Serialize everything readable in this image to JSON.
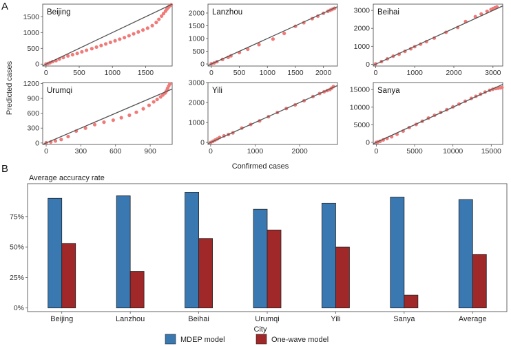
{
  "panel_a_letter": "A",
  "panel_b_letter": "B",
  "colors": {
    "point": "#f07a78",
    "fit_line": "#555555",
    "mdep": "#3a78b2",
    "onewave": "#a02828",
    "frame": "#555555"
  },
  "chart_data": [
    {
      "type": "scatter",
      "title": "Beijing",
      "xlim": [
        -50,
        1900
      ],
      "ylim": [
        -60,
        1900
      ],
      "xticks": [
        0,
        500,
        1000,
        1500
      ],
      "yticks": [
        0,
        500,
        1000,
        1500
      ],
      "xlabel": "Confirmed cases",
      "ylabel": "Predicted cases",
      "line": [
        [
          -50,
          -50
        ],
        [
          1900,
          1900
        ]
      ],
      "points": [
        [
          0,
          5
        ],
        [
          30,
          20
        ],
        [
          60,
          45
        ],
        [
          100,
          80
        ],
        [
          150,
          110
        ],
        [
          200,
          160
        ],
        [
          260,
          210
        ],
        [
          330,
          260
        ],
        [
          400,
          300
        ],
        [
          470,
          340
        ],
        [
          540,
          390
        ],
        [
          610,
          440
        ],
        [
          690,
          490
        ],
        [
          760,
          540
        ],
        [
          830,
          590
        ],
        [
          900,
          640
        ],
        [
          970,
          690
        ],
        [
          1040,
          740
        ],
        [
          1110,
          790
        ],
        [
          1180,
          840
        ],
        [
          1250,
          900
        ],
        [
          1320,
          960
        ],
        [
          1390,
          1020
        ],
        [
          1460,
          1080
        ],
        [
          1530,
          1140
        ],
        [
          1600,
          1220
        ],
        [
          1660,
          1320
        ],
        [
          1700,
          1420
        ],
        [
          1740,
          1520
        ],
        [
          1770,
          1600
        ],
        [
          1800,
          1680
        ],
        [
          1820,
          1740
        ],
        [
          1840,
          1790
        ],
        [
          1855,
          1830
        ],
        [
          1870,
          1860
        ],
        [
          1885,
          1880
        ]
      ]
    },
    {
      "type": "scatter",
      "title": "Lanzhou",
      "xlim": [
        -60,
        2250
      ],
      "ylim": [
        -80,
        2350
      ],
      "xticks": [
        0,
        500,
        1000,
        1500,
        2000
      ],
      "yticks": [
        0,
        500,
        1000,
        1500,
        2000
      ],
      "xlabel": "Confirmed cases",
      "ylabel": "Predicted cases",
      "line": [
        [
          -60,
          -60
        ],
        [
          2250,
          2250
        ]
      ],
      "points": [
        [
          0,
          10
        ],
        [
          50,
          40
        ],
        [
          100,
          90
        ],
        [
          200,
          180
        ],
        [
          300,
          260
        ],
        [
          350,
          320
        ],
        [
          500,
          450
        ],
        [
          650,
          580
        ],
        [
          850,
          760
        ],
        [
          1100,
          980
        ],
        [
          1300,
          1200
        ],
        [
          1500,
          1480
        ],
        [
          1650,
          1620
        ],
        [
          1800,
          1780
        ],
        [
          1900,
          1880
        ],
        [
          2000,
          1990
        ],
        [
          2080,
          2070
        ],
        [
          2120,
          2110
        ],
        [
          2150,
          2140
        ],
        [
          2180,
          2170
        ],
        [
          2200,
          2190
        ]
      ]
    },
    {
      "type": "scatter",
      "title": "Beihai",
      "xlim": [
        -60,
        3250
      ],
      "ylim": [
        -100,
        3350
      ],
      "xticks": [
        0,
        1000,
        2000,
        3000
      ],
      "yticks": [
        0,
        1000,
        2000,
        3000
      ],
      "xlabel": "Confirmed cases",
      "ylabel": "Predicted cases",
      "line": [
        [
          -60,
          -60
        ],
        [
          3250,
          3250
        ]
      ],
      "points": [
        [
          0,
          20
        ],
        [
          150,
          150
        ],
        [
          300,
          300
        ],
        [
          450,
          450
        ],
        [
          600,
          560
        ],
        [
          750,
          720
        ],
        [
          900,
          860
        ],
        [
          1000,
          980
        ],
        [
          1150,
          1120
        ],
        [
          1300,
          1260
        ],
        [
          1500,
          1460
        ],
        [
          1800,
          1780
        ],
        [
          2100,
          2050
        ],
        [
          2300,
          2380
        ],
        [
          2550,
          2650
        ],
        [
          2700,
          2800
        ],
        [
          2850,
          2950
        ],
        [
          2950,
          3050
        ],
        [
          3000,
          3100
        ],
        [
          3050,
          3150
        ],
        [
          3100,
          3200
        ]
      ]
    },
    {
      "type": "scatter",
      "title": "Urumqi",
      "xlim": [
        -30,
        1090
      ],
      "ylim": [
        -30,
        1220
      ],
      "xticks": [
        0,
        300,
        600,
        900
      ],
      "yticks": [
        0,
        300,
        600,
        900,
        1200
      ],
      "xlabel": "Confirmed cases",
      "ylabel": "Predicted cases",
      "line": [
        [
          -30,
          -30
        ],
        [
          1090,
          1090
        ]
      ],
      "points": [
        [
          0,
          5
        ],
        [
          40,
          20
        ],
        [
          80,
          40
        ],
        [
          130,
          70
        ],
        [
          190,
          130
        ],
        [
          260,
          240
        ],
        [
          340,
          300
        ],
        [
          420,
          370
        ],
        [
          500,
          420
        ],
        [
          580,
          460
        ],
        [
          650,
          510
        ],
        [
          720,
          560
        ],
        [
          780,
          620
        ],
        [
          840,
          690
        ],
        [
          890,
          760
        ],
        [
          930,
          830
        ],
        [
          960,
          880
        ],
        [
          990,
          930
        ],
        [
          1010,
          970
        ],
        [
          1030,
          1010
        ],
        [
          1040,
          1050
        ],
        [
          1050,
          1100
        ],
        [
          1060,
          1150
        ],
        [
          1070,
          1190
        ]
      ]
    },
    {
      "type": "scatter",
      "title": "Yili",
      "xlim": [
        -60,
        2850
      ],
      "ylim": [
        -100,
        3000
      ],
      "xticks": [
        0,
        1000,
        2000
      ],
      "yticks": [
        0,
        1000,
        2000,
        3000
      ],
      "xlabel": "Confirmed cases",
      "ylabel": "Predicted cases",
      "line": [
        [
          -60,
          -60
        ],
        [
          2850,
          2850
        ]
      ],
      "points": [
        [
          0,
          0
        ],
        [
          50,
          60
        ],
        [
          100,
          120
        ],
        [
          150,
          180
        ],
        [
          200,
          250
        ],
        [
          300,
          330
        ],
        [
          400,
          400
        ],
        [
          500,
          480
        ],
        [
          700,
          720
        ],
        [
          900,
          900
        ],
        [
          1100,
          1080
        ],
        [
          1300,
          1290
        ],
        [
          1500,
          1500
        ],
        [
          1700,
          1700
        ],
        [
          1900,
          1880
        ],
        [
          2100,
          2090
        ],
        [
          2300,
          2300
        ],
        [
          2450,
          2450
        ],
        [
          2550,
          2540
        ],
        [
          2620,
          2600
        ],
        [
          2680,
          2650
        ],
        [
          2720,
          2720
        ],
        [
          2760,
          2800
        ]
      ]
    },
    {
      "type": "scatter",
      "title": "Sanya",
      "xlim": [
        -400,
        16500
      ],
      "ylim": [
        -600,
        17000
      ],
      "xticks": [
        0,
        5000,
        10000,
        15000
      ],
      "yticks": [
        0,
        5000,
        10000,
        15000
      ],
      "xlabel": "Confirmed cases",
      "ylabel": "Predicted cases",
      "line": [
        [
          -400,
          -400
        ],
        [
          16500,
          16500
        ]
      ],
      "points": [
        [
          0,
          0
        ],
        [
          200,
          100
        ],
        [
          500,
          300
        ],
        [
          900,
          700
        ],
        [
          1400,
          1100
        ],
        [
          2000,
          1600
        ],
        [
          2700,
          2300
        ],
        [
          3500,
          3200
        ],
        [
          4300,
          4200
        ],
        [
          5200,
          5100
        ],
        [
          6000,
          6000
        ],
        [
          6800,
          6900
        ],
        [
          7600,
          7700
        ],
        [
          8400,
          8500
        ],
        [
          9200,
          9300
        ],
        [
          10000,
          10100
        ],
        [
          10800,
          10900
        ],
        [
          11600,
          11700
        ],
        [
          12400,
          12500
        ],
        [
          13000,
          13100
        ],
        [
          13600,
          13700
        ],
        [
          14200,
          14300
        ],
        [
          14800,
          14800
        ],
        [
          15200,
          15100
        ],
        [
          15600,
          15300
        ],
        [
          15900,
          15400
        ],
        [
          16200,
          15500
        ],
        [
          16400,
          15600
        ]
      ]
    },
    {
      "type": "bar",
      "title": "Average accuracy rate",
      "xlabel": "City",
      "ylabel": "",
      "categories": [
        "Beijing",
        "Lanzhou",
        "Beihai",
        "Urumqi",
        "Yili",
        "Sanya",
        "Average"
      ],
      "series": [
        {
          "name": "MDEP model",
          "values": [
            90,
            92,
            95,
            81,
            86,
            91,
            89
          ]
        },
        {
          "name": "One-wave model",
          "values": [
            53,
            30,
            57,
            64,
            50,
            10.5,
            44
          ]
        }
      ],
      "ylim": [
        -3,
        102
      ],
      "yticks": [
        0,
        25,
        50,
        75
      ],
      "ytick_labels": [
        "0%",
        "25%",
        "50%",
        "75%"
      ],
      "legend": "bottom-center"
    }
  ]
}
